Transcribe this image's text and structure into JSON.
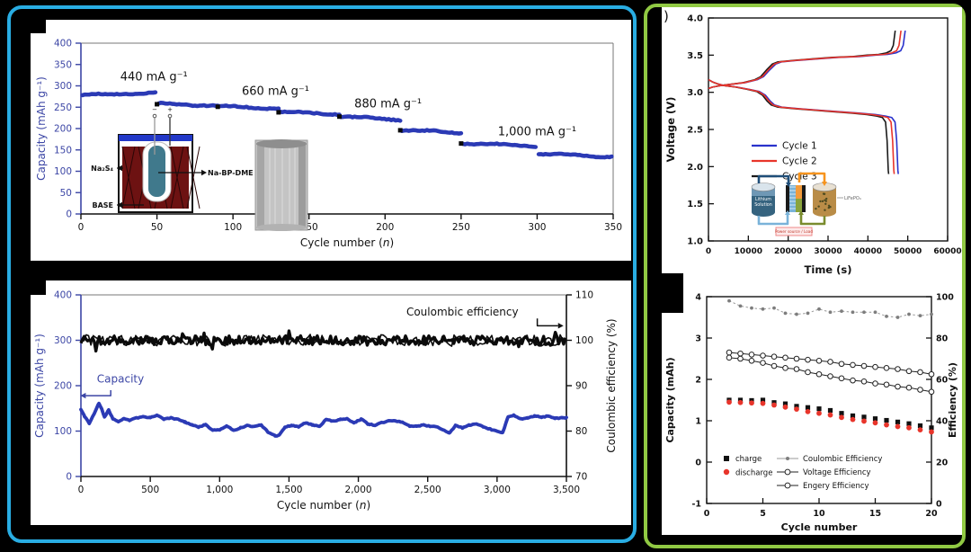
{
  "background": "#000000",
  "left_panel": {
    "border_color": "#29ade3"
  },
  "right_panel": {
    "border_color": "#90c943",
    "panel_label_fragment": ")"
  },
  "chart_data": [
    {
      "id": "rate_test",
      "type": "scatter",
      "xlabel": "Cycle number (n)",
      "ylabel": "Capacity (mAh g⁻¹)",
      "xlim": [
        0,
        350
      ],
      "ylim": [
        0,
        400
      ],
      "xticks": [
        0,
        50,
        100,
        150,
        200,
        250,
        300,
        350
      ],
      "yticks": [
        0,
        50,
        100,
        150,
        200,
        250,
        300,
        350,
        400
      ],
      "series_color": "#2b3ab5",
      "axis_color": "#3c46a5",
      "segments": [
        {
          "c0": 1,
          "c1": 50,
          "v0": 278,
          "v1": 284
        },
        {
          "c0": 51,
          "c1": 90,
          "v0": 258,
          "v1": 254
        },
        {
          "c0": 91,
          "c1": 130,
          "v0": 252,
          "v1": 247
        },
        {
          "c0": 131,
          "c1": 170,
          "v0": 239,
          "v1": 234
        },
        {
          "c0": 171,
          "c1": 210,
          "v0": 228,
          "v1": 221
        },
        {
          "c0": 211,
          "c1": 250,
          "v0": 197,
          "v1": 190
        },
        {
          "c0": 251,
          "c1": 300,
          "v0": 166,
          "v1": 159
        },
        {
          "c0": 301,
          "c1": 350,
          "v0": 141,
          "v1": 134
        }
      ],
      "transition_markers": [
        [
          50,
          257
        ],
        [
          90,
          251
        ],
        [
          130,
          238
        ],
        [
          170,
          228
        ],
        [
          210,
          196
        ],
        [
          250,
          165
        ]
      ],
      "rate_labels": [
        {
          "text": "440 mA g⁻¹",
          "c": 48,
          "v": 313
        },
        {
          "text": "660 mA g⁻¹",
          "c": 128,
          "v": 279
        },
        {
          "text": "880 mA g⁻¹",
          "c": 202,
          "v": 249
        },
        {
          "text": "1,000 mA g⁻¹",
          "c": 300,
          "v": 184
        }
      ],
      "inset_cell_labels": {
        "catholyte": "Na₂S₄",
        "anolyte": "Na-BP-DME",
        "electrolyte": "BASE",
        "minus": "−",
        "plus": "+"
      }
    },
    {
      "id": "long_cycling",
      "type": "line",
      "xlabel": "Cycle number (n)",
      "ylabel_left": "Capacity (mAh g⁻¹)",
      "ylabel_right": "Coulombic efficiency (%)",
      "xlim": [
        0,
        3500
      ],
      "ylim_left": [
        0,
        400
      ],
      "ylim_right": [
        70,
        110
      ],
      "xtick_vals": [
        0,
        500,
        1000,
        1500,
        2000,
        2500,
        3000,
        3500
      ],
      "xtick_labels": [
        "0",
        "500",
        "1,000",
        "1,500",
        "2,000",
        "2,500",
        "3,000",
        "3,500"
      ],
      "yticks_left": [
        0,
        100,
        200,
        300,
        400
      ],
      "yticks_right": [
        70,
        80,
        90,
        100,
        110
      ],
      "capacity_color": "#2b3ab5",
      "efficiency_color": "#0b0b0b",
      "efficiency_mean": 100,
      "annotation_capacity": "Capacity",
      "annotation_efficiency": "Coulombic efficiency",
      "capacity_anchors": [
        [
          0,
          148
        ],
        [
          25,
          132
        ],
        [
          60,
          115
        ],
        [
          100,
          140
        ],
        [
          130,
          162
        ],
        [
          150,
          150
        ],
        [
          170,
          132
        ],
        [
          200,
          148
        ],
        [
          230,
          128
        ],
        [
          270,
          120
        ],
        [
          310,
          126
        ],
        [
          350,
          122
        ],
        [
          400,
          130
        ],
        [
          450,
          133
        ],
        [
          500,
          130
        ],
        [
          550,
          133
        ],
        [
          600,
          125
        ],
        [
          650,
          130
        ],
        [
          700,
          127
        ],
        [
          750,
          120
        ],
        [
          800,
          112
        ],
        [
          850,
          108
        ],
        [
          900,
          115
        ],
        [
          950,
          104
        ],
        [
          1000,
          103
        ],
        [
          1050,
          110
        ],
        [
          1100,
          100
        ],
        [
          1150,
          108
        ],
        [
          1200,
          114
        ],
        [
          1250,
          110
        ],
        [
          1300,
          112
        ],
        [
          1350,
          96
        ],
        [
          1400,
          90
        ],
        [
          1430,
          92
        ],
        [
          1470,
          110
        ],
        [
          1520,
          112
        ],
        [
          1570,
          108
        ],
        [
          1620,
          118
        ],
        [
          1670,
          115
        ],
        [
          1720,
          112
        ],
        [
          1770,
          126
        ],
        [
          1820,
          120
        ],
        [
          1870,
          125
        ],
        [
          1920,
          128
        ],
        [
          1970,
          120
        ],
        [
          2020,
          126
        ],
        [
          2070,
          114
        ],
        [
          2120,
          112
        ],
        [
          2170,
          120
        ],
        [
          2220,
          124
        ],
        [
          2270,
          122
        ],
        [
          2320,
          118
        ],
        [
          2370,
          110
        ],
        [
          2420,
          112
        ],
        [
          2470,
          115
        ],
        [
          2520,
          110
        ],
        [
          2570,
          108
        ],
        [
          2620,
          100
        ],
        [
          2660,
          97
        ],
        [
          2700,
          114
        ],
        [
          2750,
          108
        ],
        [
          2800,
          112
        ],
        [
          2850,
          114
        ],
        [
          2900,
          110
        ],
        [
          2950,
          106
        ],
        [
          3000,
          100
        ],
        [
          3040,
          95
        ],
        [
          3080,
          130
        ],
        [
          3120,
          134
        ],
        [
          3170,
          128
        ],
        [
          3220,
          131
        ],
        [
          3270,
          133
        ],
        [
          3320,
          129
        ],
        [
          3370,
          132
        ],
        [
          3420,
          129
        ],
        [
          3470,
          131
        ],
        [
          3500,
          130
        ]
      ]
    },
    {
      "id": "voltage_profiles",
      "type": "line",
      "xlabel": "Time (s)",
      "ylabel": "Voltage (V)",
      "xlim": [
        0,
        60000
      ],
      "ylim": [
        1.0,
        4.0
      ],
      "xticks": [
        0,
        10000,
        20000,
        30000,
        40000,
        50000,
        60000
      ],
      "ytick_labels": [
        "1.0",
        "1.5",
        "2.0",
        "2.5",
        "3.0",
        "3.5",
        "4.0"
      ],
      "legend": [
        {
          "label": "Cycle 1",
          "color": "#2a33cc"
        },
        {
          "label": "Cycle 2",
          "color": "#e8352b"
        },
        {
          "label": "Cycle 3",
          "color": "#1a1a1a"
        }
      ],
      "x_scale_factors": [
        1.022,
        1.0,
        0.97
      ],
      "charge_base": [
        [
          0,
          3.05
        ],
        [
          1000,
          3.07
        ],
        [
          3000,
          3.09
        ],
        [
          6000,
          3.11
        ],
        [
          9000,
          3.13
        ],
        [
          12000,
          3.17
        ],
        [
          13500,
          3.21
        ],
        [
          15000,
          3.3
        ],
        [
          16500,
          3.38
        ],
        [
          18000,
          3.41
        ],
        [
          22000,
          3.43
        ],
        [
          27000,
          3.45
        ],
        [
          32000,
          3.47
        ],
        [
          37000,
          3.48
        ],
        [
          41000,
          3.5
        ],
        [
          44000,
          3.51
        ],
        [
          46000,
          3.53
        ],
        [
          47200,
          3.56
        ],
        [
          47800,
          3.63
        ],
        [
          48100,
          3.75
        ],
        [
          48300,
          3.83
        ]
      ],
      "discharge_base": [
        [
          0,
          3.17
        ],
        [
          1000,
          3.14
        ],
        [
          2500,
          3.11
        ],
        [
          4000,
          3.09
        ],
        [
          7000,
          3.07
        ],
        [
          10000,
          3.04
        ],
        [
          12500,
          3.01
        ],
        [
          14000,
          2.96
        ],
        [
          15200,
          2.88
        ],
        [
          16200,
          2.83
        ],
        [
          18000,
          2.8
        ],
        [
          22000,
          2.78
        ],
        [
          27000,
          2.76
        ],
        [
          32000,
          2.74
        ],
        [
          37000,
          2.72
        ],
        [
          41000,
          2.7
        ],
        [
          43500,
          2.68
        ],
        [
          45000,
          2.66
        ],
        [
          45800,
          2.6
        ],
        [
          46200,
          2.35
        ],
        [
          46500,
          1.95
        ],
        [
          46600,
          1.9
        ]
      ],
      "inset_labels": {
        "left_tank": "Lithium Solution",
        "cell_output": "LiFePO₄",
        "power": "Power source / Load"
      }
    },
    {
      "id": "flow_cycling",
      "type": "scatter",
      "xlabel": "Cycle number",
      "ylabel_left": "Capacity (mAh)",
      "ylabel_right": "Efficiency (%)",
      "xlim": [
        0,
        20
      ],
      "ylim_left": [
        -1,
        4
      ],
      "ylim_right": [
        0,
        100
      ],
      "xticks": [
        0,
        5,
        10,
        15,
        20
      ],
      "yticks_left": [
        -1,
        0,
        1,
        2,
        3,
        4
      ],
      "yticks_right": [
        0,
        20,
        40,
        60,
        80,
        100
      ],
      "cycles": [
        2,
        3,
        4,
        5,
        6,
        7,
        8,
        9,
        10,
        11,
        12,
        13,
        14,
        15,
        16,
        17,
        18,
        19,
        20
      ],
      "charge": [
        1.5,
        1.5,
        1.49,
        1.5,
        1.44,
        1.41,
        1.35,
        1.32,
        1.29,
        1.25,
        1.18,
        1.12,
        1.09,
        1.05,
        1.01,
        0.97,
        0.93,
        0.88,
        0.83
      ],
      "discharge": [
        1.45,
        1.44,
        1.43,
        1.42,
        1.38,
        1.33,
        1.28,
        1.22,
        1.18,
        1.14,
        1.08,
        1.03,
        0.99,
        0.95,
        0.9,
        0.86,
        0.83,
        0.78,
        0.73
      ],
      "coulombic_efficiency": [
        98,
        95.5,
        94.5,
        94,
        94.5,
        92,
        91.5,
        92,
        94,
        92.5,
        93,
        92.5,
        92.5,
        92.5,
        90.5,
        90,
        91.5,
        90.8,
        91.5
      ],
      "voltage_efficiency": [
        73,
        72.5,
        72,
        71.5,
        71,
        70.5,
        70,
        69.5,
        69,
        68.5,
        67.5,
        67,
        66.5,
        66,
        65.5,
        65,
        64,
        63.5,
        62.5
      ],
      "energy_efficiency": [
        70.5,
        70,
        69,
        68,
        66.5,
        65.5,
        65,
        63.5,
        62.5,
        61.5,
        60.5,
        59.5,
        59,
        58,
        57.5,
        56.5,
        56,
        55,
        54
      ],
      "legend": {
        "charge": "charge",
        "discharge": "discharge",
        "coulombic": "Coulombic Efficiency",
        "voltage": "Voltage Efficiency",
        "energy": "Engery Efficiency"
      },
      "colors": {
        "charge": "#111111",
        "discharge": "#e8352b",
        "coulombic": "#888888",
        "open_series": "#222222"
      }
    }
  ]
}
